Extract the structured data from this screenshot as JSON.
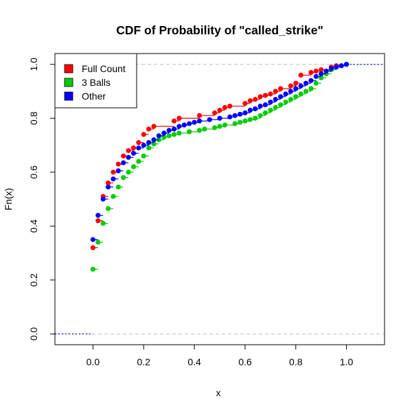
{
  "chart_data": {
    "type": "line",
    "title": "CDF of Probability of \"called_strike\"",
    "xlabel": "x",
    "ylabel": "Fn(x)",
    "xlim": [
      -0.15,
      1.15
    ],
    "ylim": [
      -0.04,
      1.04
    ],
    "xticks": [
      0.0,
      0.2,
      0.4,
      0.6,
      0.8,
      1.0
    ],
    "yticks": [
      0.0,
      0.2,
      0.4,
      0.6,
      0.8,
      1.0
    ],
    "xtick_labels": [
      "0.0",
      "0.2",
      "0.4",
      "0.6",
      "0.8",
      "1.0"
    ],
    "ytick_labels": [
      "0.0",
      "0.2",
      "0.4",
      "0.6",
      "0.8",
      "1.0"
    ],
    "grid": false,
    "reference_lines_y": [
      0,
      1
    ],
    "legend_position": "top-left",
    "series": [
      {
        "name": "Full Count",
        "color": "#ff0000",
        "x": [
          0.0,
          0.02,
          0.04,
          0.06,
          0.08,
          0.1,
          0.12,
          0.14,
          0.16,
          0.18,
          0.2,
          0.22,
          0.24,
          0.26,
          0.32,
          0.34,
          0.4,
          0.42,
          0.48,
          0.5,
          0.52,
          0.54,
          0.6,
          0.62,
          0.64,
          0.66,
          0.68,
          0.7,
          0.72,
          0.74,
          0.78,
          0.8,
          0.82,
          0.86,
          0.88,
          0.9,
          0.94,
          0.96,
          1.0
        ],
        "y": [
          0.32,
          0.42,
          0.51,
          0.56,
          0.6,
          0.63,
          0.66,
          0.68,
          0.69,
          0.71,
          0.74,
          0.76,
          0.77,
          0.77,
          0.79,
          0.8,
          0.8,
          0.81,
          0.82,
          0.83,
          0.84,
          0.845,
          0.855,
          0.865,
          0.87,
          0.88,
          0.885,
          0.89,
          0.9,
          0.91,
          0.92,
          0.93,
          0.96,
          0.97,
          0.975,
          0.98,
          0.99,
          0.995,
          1.0
        ]
      },
      {
        "name": "3 Balls",
        "color": "#00cd00",
        "x": [
          0.0,
          0.02,
          0.04,
          0.06,
          0.08,
          0.1,
          0.12,
          0.14,
          0.16,
          0.18,
          0.2,
          0.22,
          0.24,
          0.26,
          0.28,
          0.3,
          0.32,
          0.34,
          0.36,
          0.38,
          0.4,
          0.42,
          0.44,
          0.46,
          0.48,
          0.5,
          0.52,
          0.54,
          0.56,
          0.58,
          0.6,
          0.62,
          0.64,
          0.66,
          0.68,
          0.7,
          0.72,
          0.74,
          0.76,
          0.78,
          0.8,
          0.82,
          0.84,
          0.86,
          0.88,
          0.9,
          0.92,
          0.94,
          0.96,
          0.98,
          1.0
        ],
        "y": [
          0.24,
          0.34,
          0.41,
          0.465,
          0.51,
          0.545,
          0.58,
          0.6,
          0.62,
          0.64,
          0.66,
          0.69,
          0.705,
          0.72,
          0.73,
          0.735,
          0.74,
          0.745,
          0.745,
          0.75,
          0.75,
          0.755,
          0.76,
          0.76,
          0.765,
          0.77,
          0.775,
          0.775,
          0.78,
          0.785,
          0.79,
          0.795,
          0.8,
          0.81,
          0.82,
          0.83,
          0.84,
          0.85,
          0.86,
          0.87,
          0.88,
          0.89,
          0.9,
          0.91,
          0.93,
          0.95,
          0.965,
          0.98,
          0.99,
          0.995,
          1.0
        ]
      },
      {
        "name": "Other",
        "color": "#0000ff",
        "x": [
          0.0,
          0.02,
          0.04,
          0.06,
          0.08,
          0.1,
          0.12,
          0.14,
          0.16,
          0.18,
          0.2,
          0.22,
          0.24,
          0.26,
          0.28,
          0.3,
          0.32,
          0.34,
          0.36,
          0.38,
          0.4,
          0.42,
          0.44,
          0.46,
          0.48,
          0.5,
          0.52,
          0.54,
          0.56,
          0.58,
          0.6,
          0.62,
          0.64,
          0.66,
          0.68,
          0.7,
          0.72,
          0.74,
          0.76,
          0.78,
          0.8,
          0.82,
          0.84,
          0.86,
          0.88,
          0.9,
          0.92,
          0.94,
          0.96,
          0.98,
          1.0
        ],
        "y": [
          0.35,
          0.44,
          0.5,
          0.545,
          0.575,
          0.605,
          0.635,
          0.655,
          0.67,
          0.69,
          0.7,
          0.71,
          0.72,
          0.735,
          0.745,
          0.755,
          0.76,
          0.77,
          0.775,
          0.78,
          0.785,
          0.79,
          0.79,
          0.795,
          0.795,
          0.8,
          0.8,
          0.805,
          0.81,
          0.815,
          0.82,
          0.83,
          0.835,
          0.845,
          0.85,
          0.86,
          0.87,
          0.88,
          0.89,
          0.9,
          0.91,
          0.92,
          0.93,
          0.94,
          0.955,
          0.965,
          0.975,
          0.985,
          0.99,
          0.995,
          1.0
        ]
      }
    ]
  }
}
